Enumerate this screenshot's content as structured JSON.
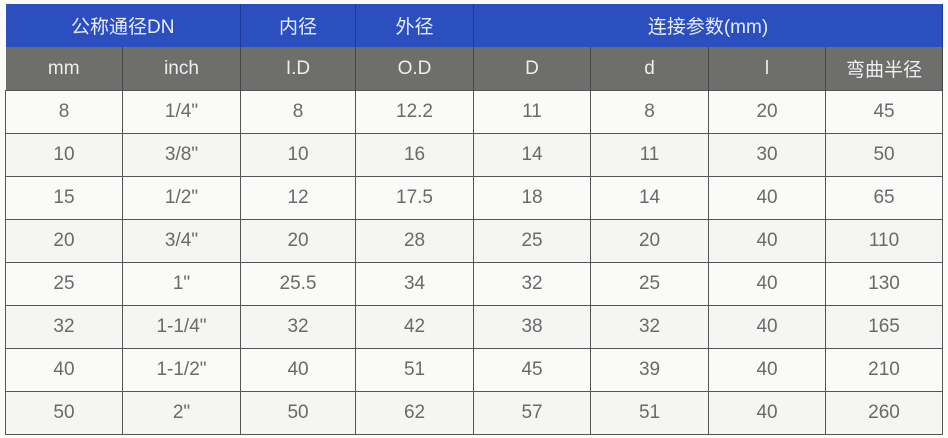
{
  "colors": {
    "header_top": "#2b4fbf",
    "header_sub": "#6e6e6c"
  },
  "header": {
    "nominal": "公称通径DN",
    "inner": "内径",
    "outer": "外径",
    "connection": "连接参数(mm)"
  },
  "subheader": [
    "mm",
    "inch",
    "I.D",
    "O.D",
    "D",
    "d",
    "l",
    "弯曲半径"
  ],
  "rows": [
    [
      "8",
      "1/4\"",
      "8",
      "12.2",
      "11",
      "8",
      "20",
      "45"
    ],
    [
      "10",
      "3/8\"",
      "10",
      "16",
      "14",
      "11",
      "30",
      "50"
    ],
    [
      "15",
      "1/2\"",
      "12",
      "17.5",
      "18",
      "14",
      "40",
      "65"
    ],
    [
      "20",
      "3/4\"",
      "20",
      "28",
      "25",
      "20",
      "40",
      "110"
    ],
    [
      "25",
      "1\"",
      "25.5",
      "34",
      "32",
      "25",
      "40",
      "130"
    ],
    [
      "32",
      "1-1/4\"",
      "32",
      "42",
      "38",
      "32",
      "40",
      "165"
    ],
    [
      "40",
      "1-1/2\"",
      "40",
      "51",
      "45",
      "39",
      "40",
      "210"
    ],
    [
      "50",
      "2\"",
      "50",
      "62",
      "57",
      "51",
      "40",
      "260"
    ]
  ]
}
